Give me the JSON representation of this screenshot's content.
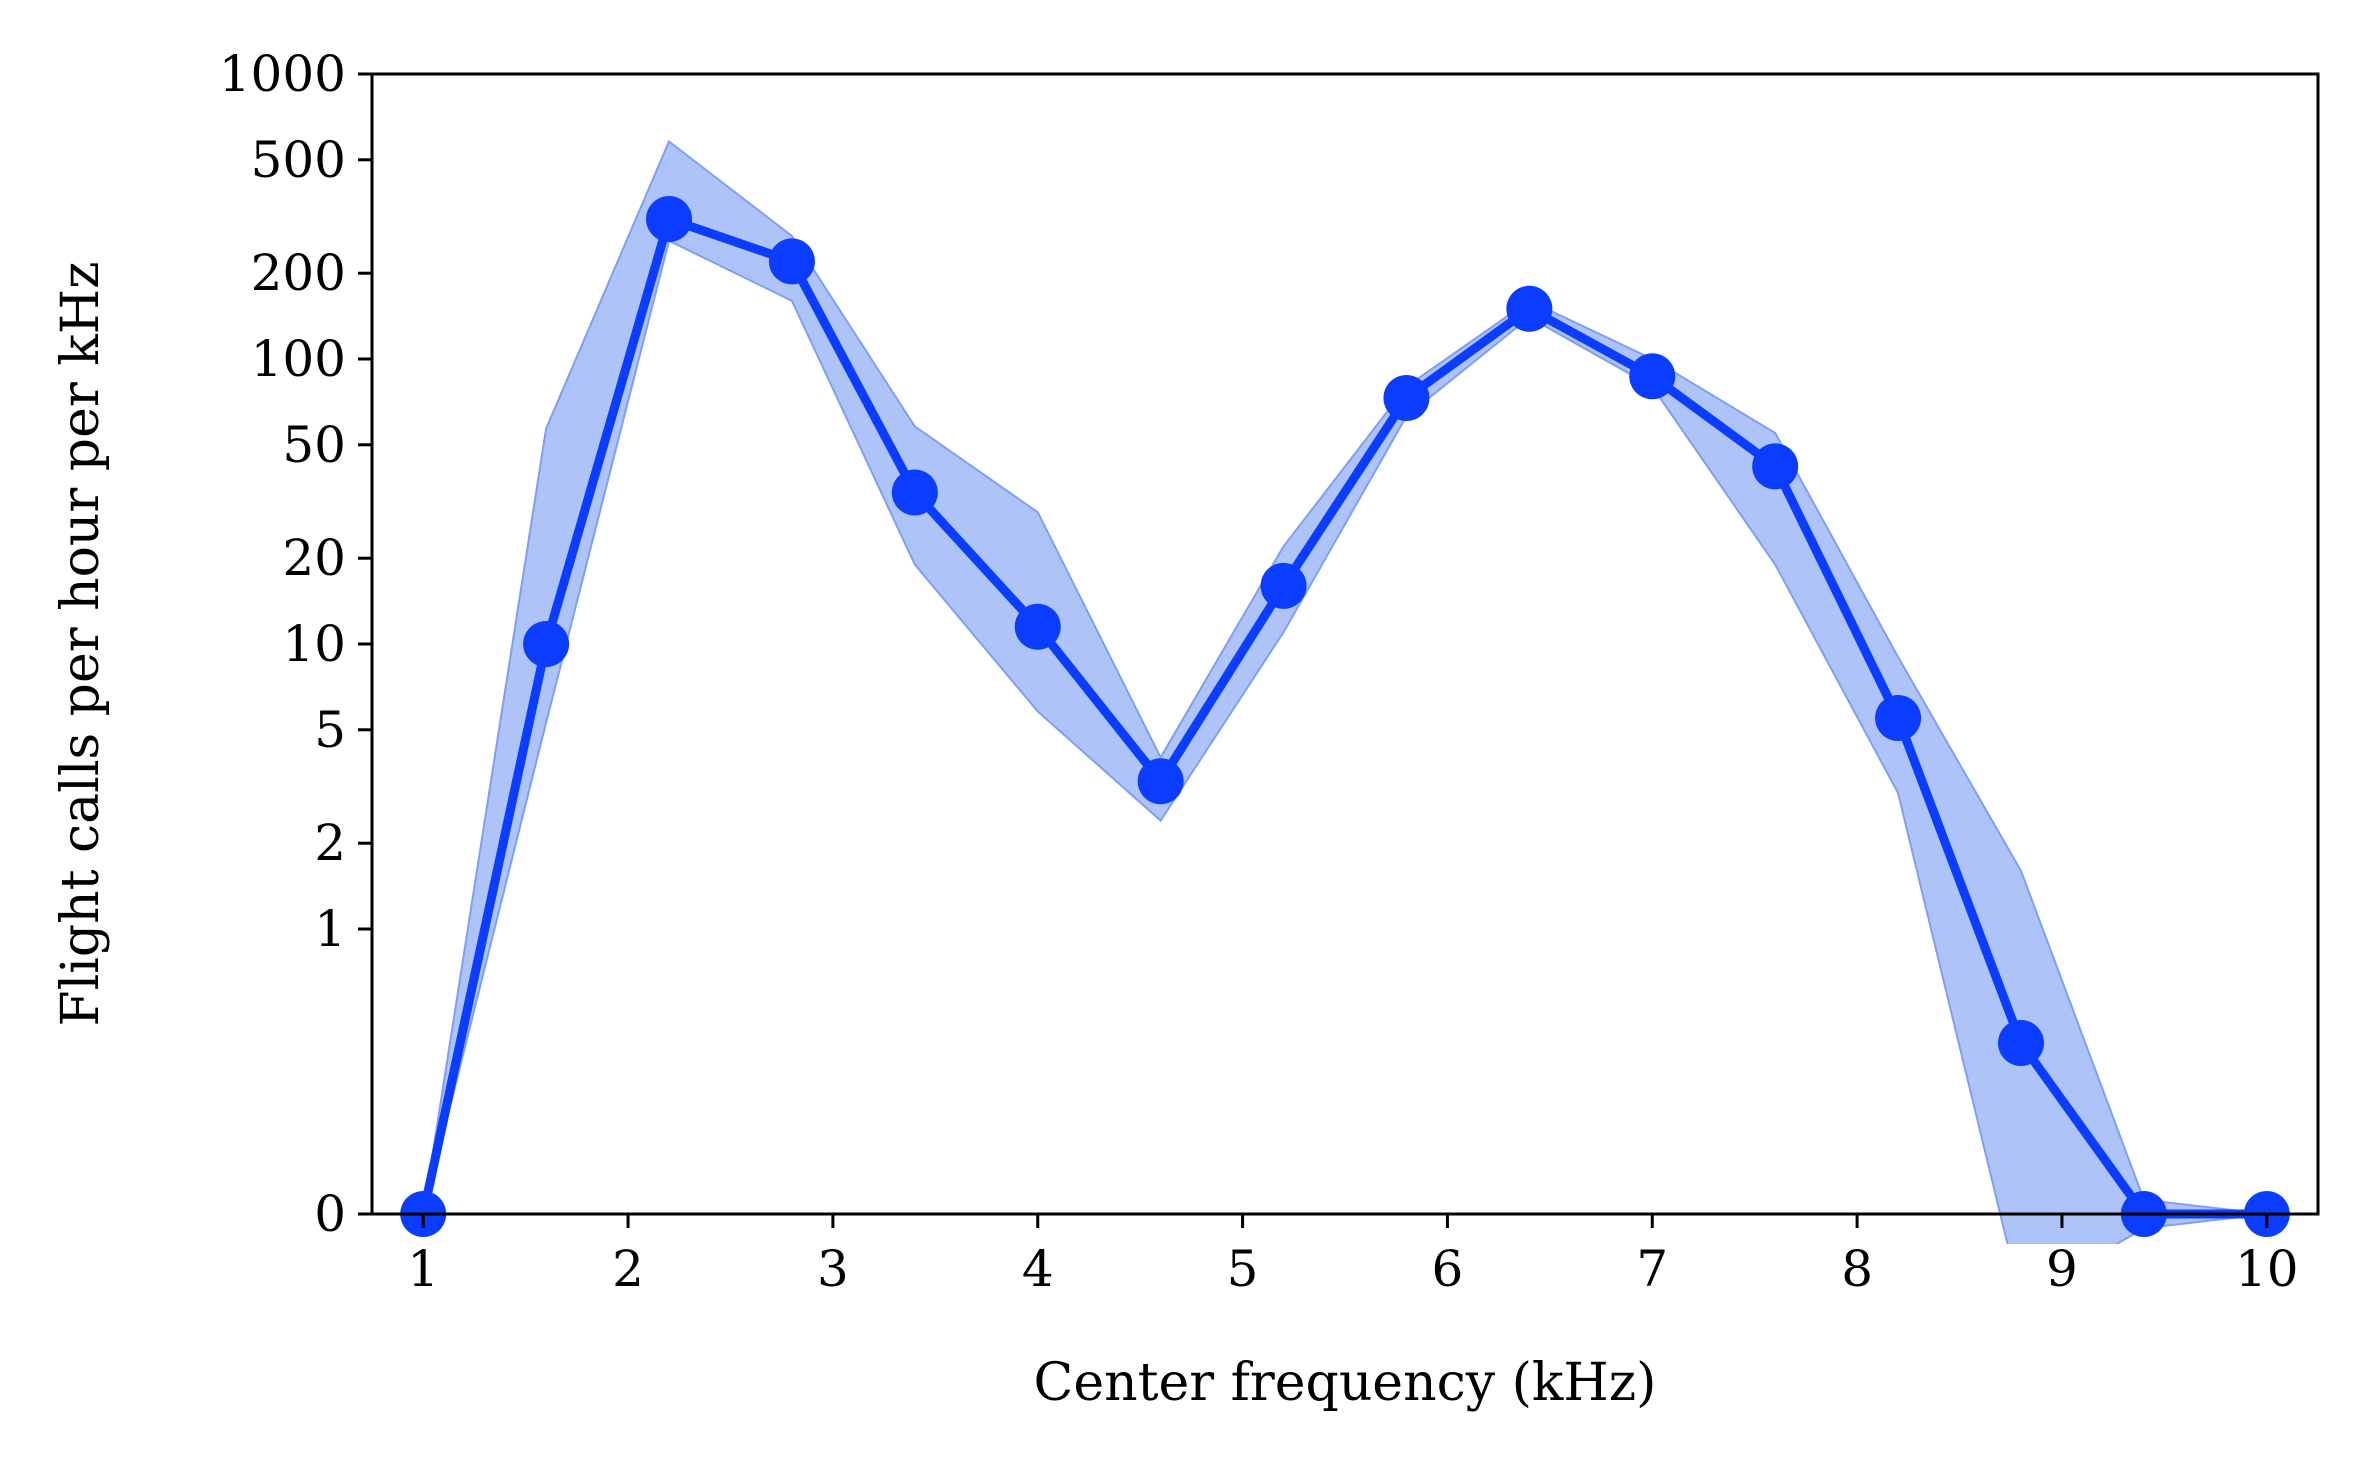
{
  "chart_data": {
    "type": "line",
    "title": "",
    "xlabel": "Center frequency (kHz)",
    "ylabel": "Flight calls per hour per kHz",
    "xlim": [
      0.75,
      10.25
    ],
    "ylim": [
      0,
      1000
    ],
    "x_scale": "linear",
    "y_scale": "symlog",
    "x_ticks": [
      1,
      2,
      3,
      4,
      5,
      6,
      7,
      8,
      9,
      10
    ],
    "y_ticks": [
      0,
      1,
      2,
      5,
      10,
      20,
      50,
      100,
      200,
      500,
      1000
    ],
    "x_tick_labels": [
      "1",
      "2",
      "3",
      "4",
      "5",
      "6",
      "7",
      "8",
      "9",
      "10"
    ],
    "y_tick_labels": [
      "0",
      "1",
      "2",
      "5",
      "10",
      "20",
      "50",
      "100",
      "200",
      "500",
      "1000"
    ],
    "grid": false,
    "legend": "none",
    "series": [
      {
        "color": "#0a3dff",
        "marker": "circle",
        "x": [
          1.0,
          1.6,
          2.2,
          2.8,
          3.4,
          4.0,
          4.6,
          5.2,
          5.8,
          6.4,
          7.0,
          7.6,
          8.2,
          8.8,
          9.4,
          10.0
        ],
        "values": [
          0,
          10,
          310,
          220,
          34,
          11.5,
          3.3,
          16,
          73,
          150,
          87,
          42,
          5.5,
          0.6,
          0,
          0
        ],
        "band_lower": [
          0,
          5.3,
          260,
          160,
          19,
          5.8,
          2.4,
          11,
          63,
          140,
          80,
          19,
          3.0,
          -0.3,
          -0.05,
          0
        ],
        "band_upper": [
          0,
          57,
          580,
          270,
          58,
          29,
          4.0,
          22,
          80,
          160,
          100,
          55,
          9.0,
          1.6,
          0.05,
          0
        ],
        "band_color": "#aac0f7"
      }
    ]
  }
}
